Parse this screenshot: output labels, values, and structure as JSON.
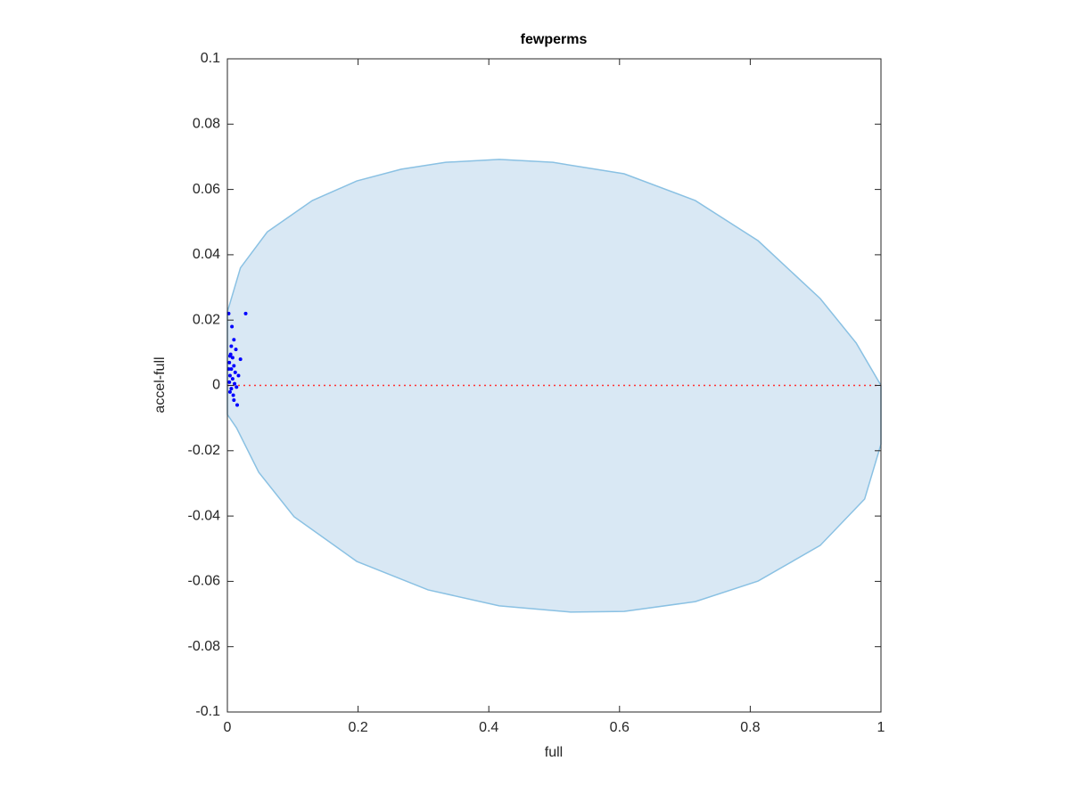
{
  "chart_data": {
    "type": "scatter",
    "title": "fewperms",
    "xlabel": "full",
    "ylabel": "accel-full",
    "xlim": [
      0,
      1
    ],
    "ylim": [
      -0.1,
      0.1
    ],
    "xticks": [
      0,
      0.2,
      0.4,
      0.6,
      0.8,
      1
    ],
    "yticks": [
      -0.1,
      -0.08,
      -0.06,
      -0.04,
      -0.02,
      0,
      0.02,
      0.04,
      0.06,
      0.08,
      0.1
    ],
    "box": true,
    "series": [
      {
        "type": "area",
        "color": "#d9e8f4",
        "edge_color": "#8ac1e3",
        "x": [
          0,
          0.02,
          0.061,
          0.13,
          0.198,
          0.266,
          0.334,
          0.416,
          0.498,
          0.607,
          0.716,
          0.812,
          0.907,
          0.962,
          1,
          1,
          0.975,
          0.907,
          0.812,
          0.716,
          0.607,
          0.525,
          0.416,
          0.307,
          0.198,
          0.102,
          0.048,
          0.014,
          0
        ],
        "y": [
          0.0225,
          0.036,
          0.047,
          0.0566,
          0.0626,
          0.0662,
          0.0683,
          0.0692,
          0.0683,
          0.0648,
          0.0566,
          0.0443,
          0.0266,
          0.013,
          0,
          -0.018,
          -0.0348,
          -0.049,
          -0.0599,
          -0.0662,
          -0.0692,
          -0.0694,
          -0.0675,
          -0.0626,
          -0.0539,
          -0.0402,
          -0.0266,
          -0.013,
          -0.0089
        ]
      },
      {
        "type": "line",
        "color": "#ff3333",
        "dash": "dotted",
        "x": [
          0,
          1
        ],
        "y": [
          0,
          0
        ]
      },
      {
        "type": "scatter",
        "color": "#0000ff",
        "x": [
          0.002,
          0.028,
          0.007,
          0.01,
          0.013,
          0.006,
          0.02,
          0.004,
          0.008,
          0.003,
          0.01,
          0.002,
          0.006,
          0.012,
          0.004,
          0.017,
          0.008,
          0.003,
          0.011,
          0.006,
          0.014,
          0.004,
          0.009,
          0.015,
          0.01,
          0.005
        ],
        "y": [
          0.022,
          0.022,
          0.018,
          0.014,
          0.011,
          0.012,
          0.008,
          0.009,
          0.0085,
          0.007,
          0.006,
          0.005,
          0.005,
          0.004,
          0.003,
          0.003,
          0.002,
          0.001,
          0.0005,
          -0.001,
          -0.0005,
          -0.002,
          -0.003,
          -0.006,
          -0.0045,
          0.0095
        ]
      }
    ]
  }
}
